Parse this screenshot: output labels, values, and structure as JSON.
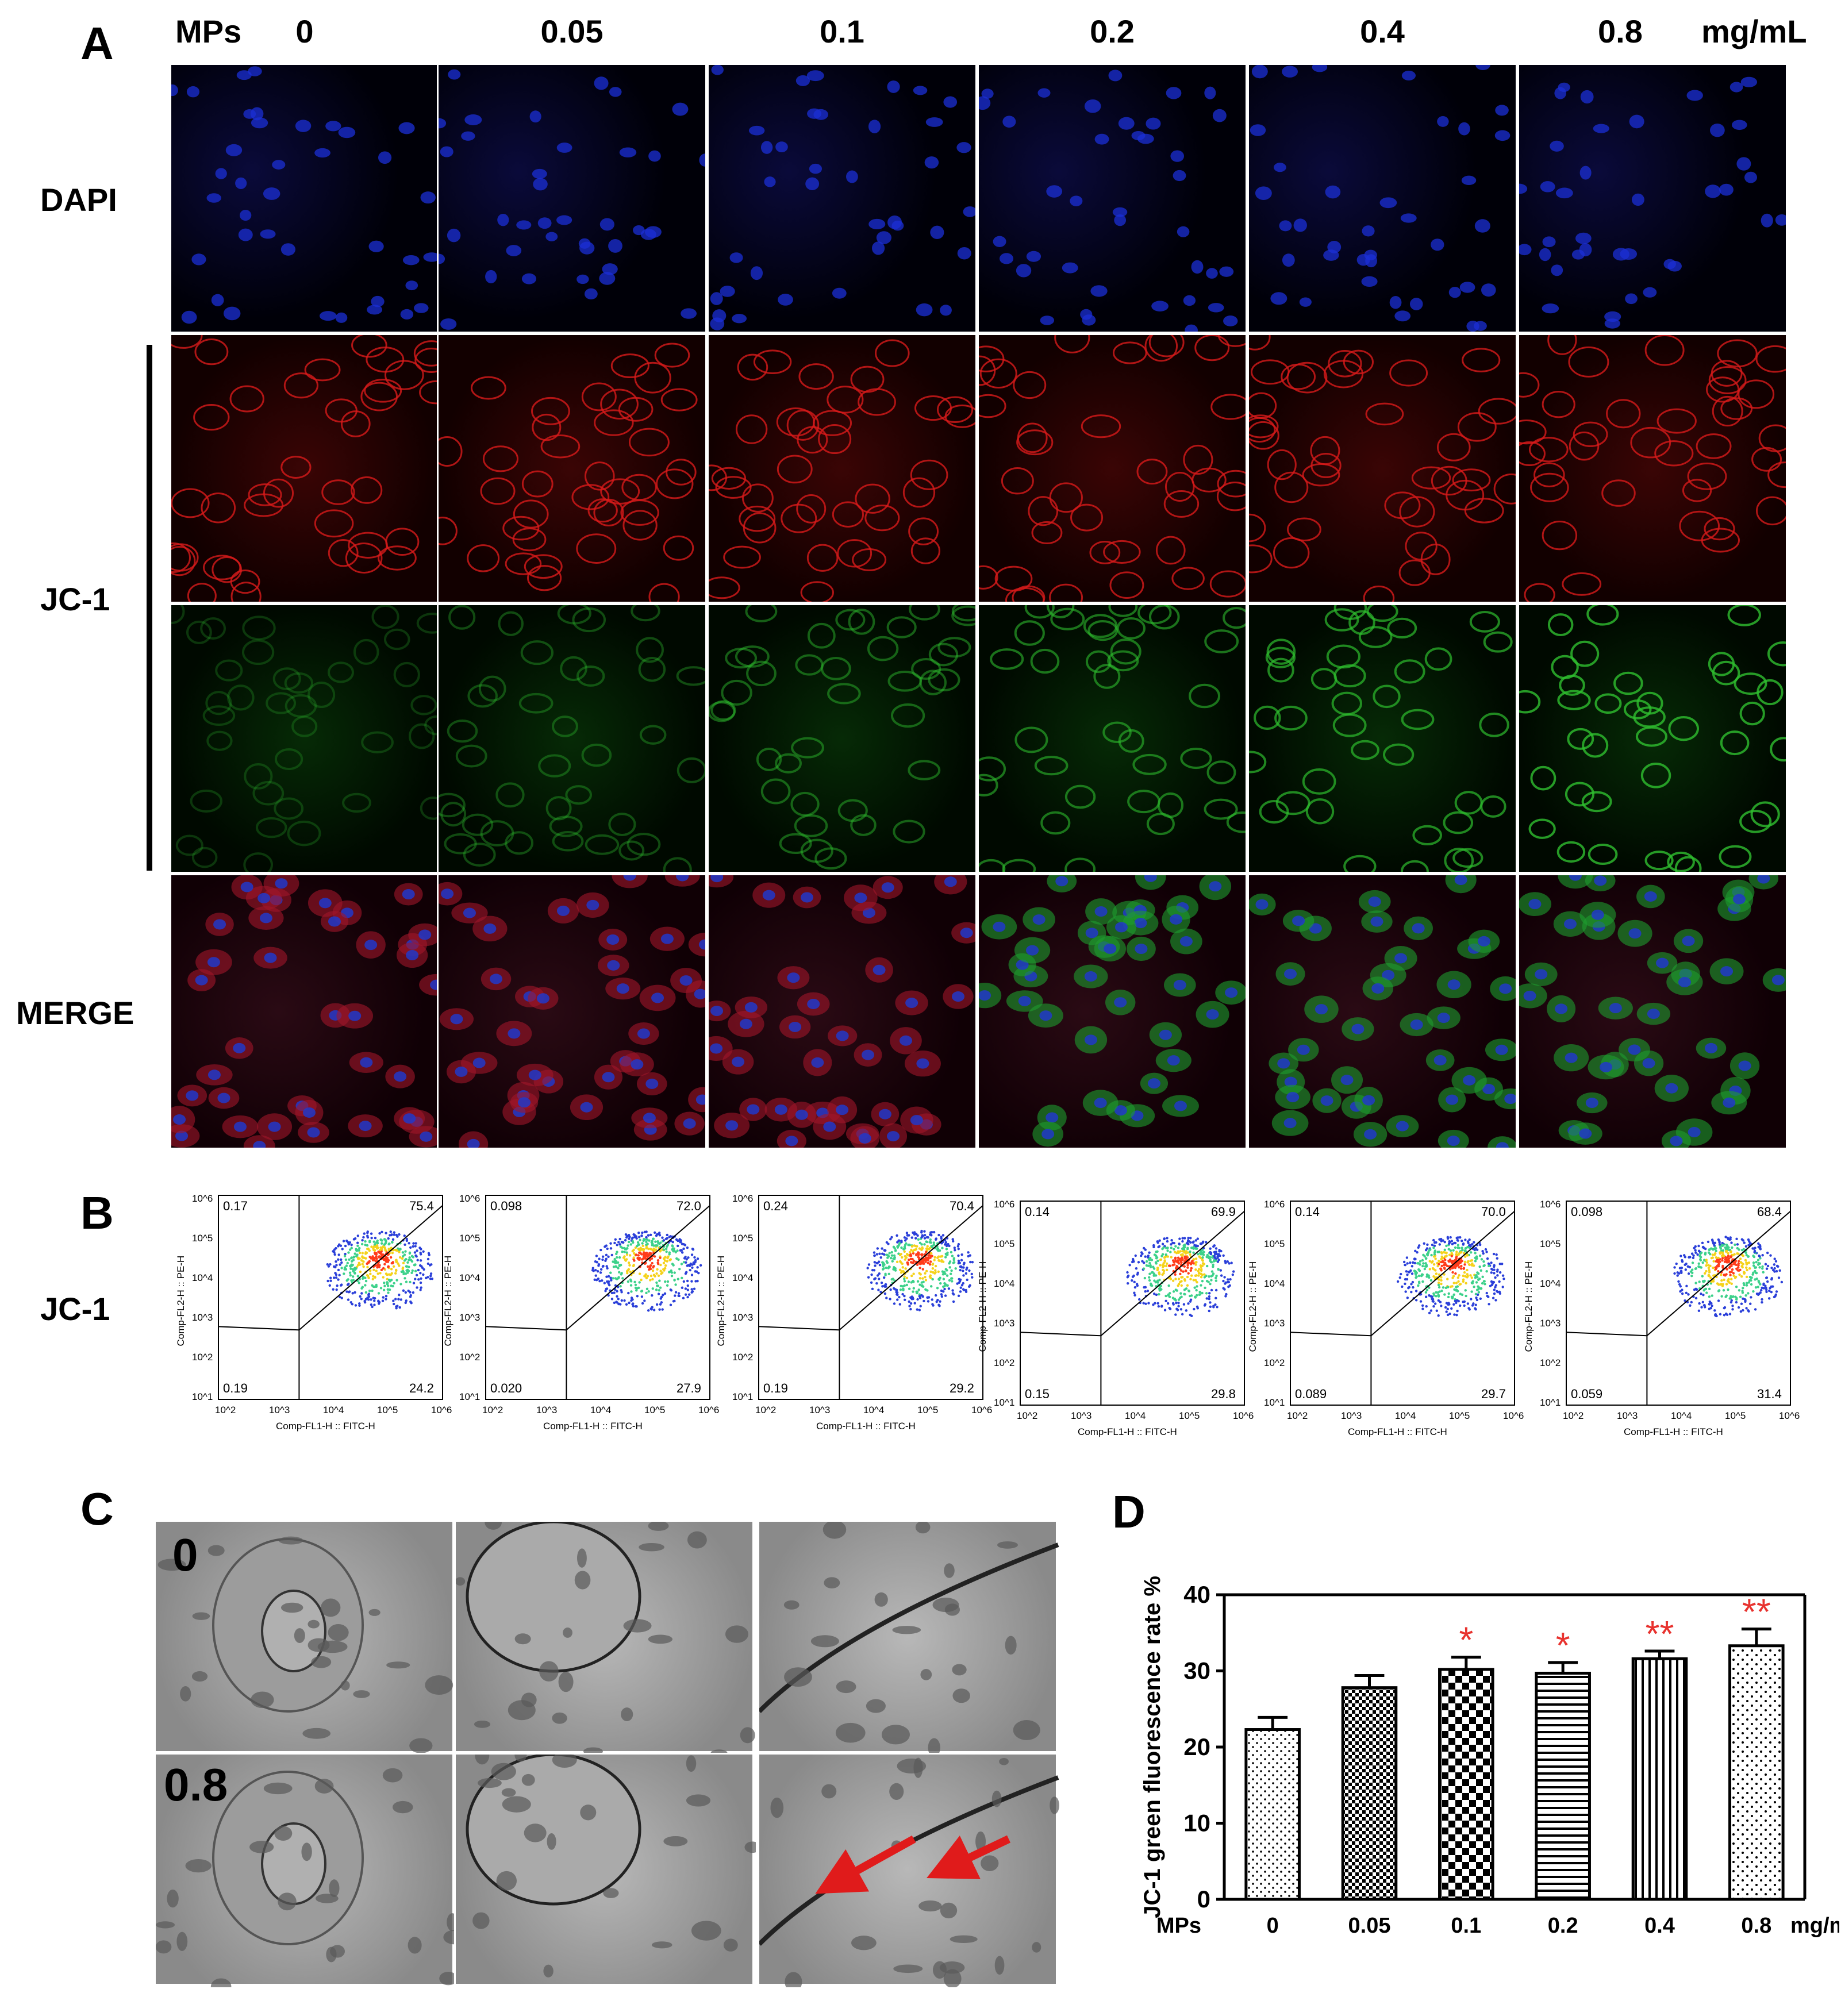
{
  "panel_a": {
    "letter": "A",
    "mps_label": "MPs",
    "concentrations": [
      "0",
      "0.05",
      "0.1",
      "0.2",
      "0.4",
      "0.8"
    ],
    "unit": "mg/mL",
    "rows": [
      "DAPI",
      "JC-1",
      "MERGE"
    ]
  },
  "panel_b": {
    "letter": "B",
    "row_label": "JC-1",
    "x_axis_label": "Comp-FL1-H :: FITC-H",
    "y_axis_label": "Comp-FL2-H :: PE-H",
    "x_ticks": [
      "10^2",
      "10^3",
      "10^4",
      "10^5",
      "10^6"
    ],
    "y_ticks": [
      "10^1",
      "10^2",
      "10^3",
      "10^4",
      "10^5",
      "10^6"
    ],
    "plots": [
      {
        "ul": "0.17",
        "ur": "75.4",
        "ll": "0.19",
        "lr": "24.2"
      },
      {
        "ul": "0.098",
        "ur": "72.0",
        "ll": "0.020",
        "lr": "27.9"
      },
      {
        "ul": "0.24",
        "ur": "70.4",
        "ll": "0.19",
        "lr": "29.2"
      },
      {
        "ul": "0.14",
        "ur": "69.9",
        "ll": "0.15",
        "lr": "29.8"
      },
      {
        "ul": "0.14",
        "ur": "70.0",
        "ll": "0.089",
        "lr": "29.7"
      },
      {
        "ul": "0.098",
        "ur": "68.4",
        "ll": "0.059",
        "lr": "31.4"
      }
    ]
  },
  "panel_c": {
    "letter": "C",
    "row_labels": [
      "0",
      "0.8"
    ]
  },
  "panel_d": {
    "letter": "D"
  },
  "chart_data": {
    "type": "bar",
    "categories": [
      "0",
      "0.05",
      "0.1",
      "0.2",
      "0.4",
      "0.8"
    ],
    "values": [
      22.3,
      27.8,
      30.2,
      29.7,
      31.6,
      33.3
    ],
    "errors": [
      1.6,
      1.6,
      1.6,
      1.4,
      1.0,
      2.2
    ],
    "significance": [
      "",
      "",
      "*",
      "*",
      "**",
      "**"
    ],
    "ylabel": "JC-1 green fluorescence rate %",
    "xlabel_prefix": "MPs",
    "xlabel_unit": "mg/mL",
    "ylim": [
      0,
      40
    ],
    "yticks": [
      0,
      10,
      20,
      30,
      40
    ],
    "significance_color": "#e8322e",
    "grid": false
  }
}
